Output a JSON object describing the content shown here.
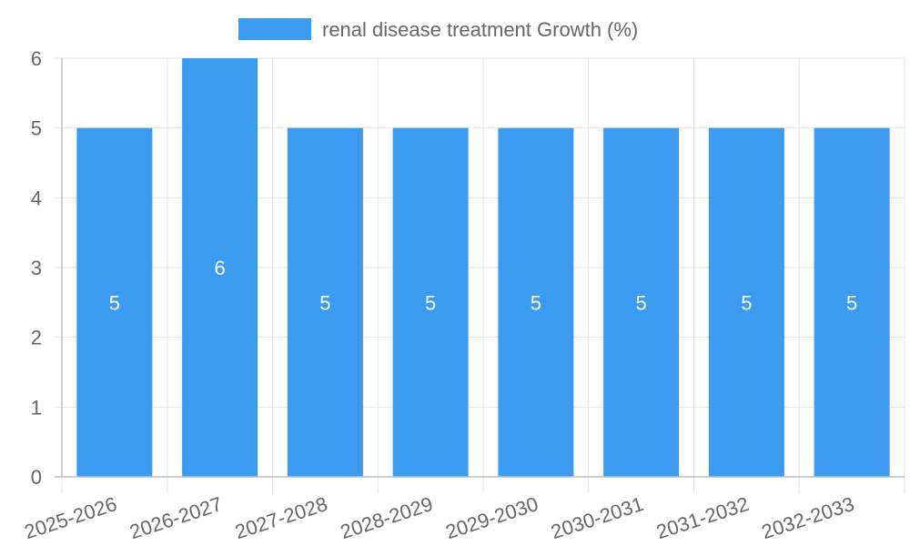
{
  "chart_data": {
    "type": "bar",
    "categories": [
      "2025-2026",
      "2026-2027",
      "2027-2028",
      "2028-2029",
      "2029-2030",
      "2030-2031",
      "2031-2032",
      "2032-2033"
    ],
    "series": [
      {
        "name": "renal disease treatment Growth (%)",
        "values": [
          5,
          6,
          5,
          5,
          5,
          5,
          5,
          5
        ],
        "color": "#3a9bf0"
      }
    ],
    "ylim": [
      0,
      6
    ],
    "yticks": [
      0,
      1,
      2,
      3,
      4,
      5,
      6
    ],
    "grid": true,
    "legend_position": "top",
    "data_labels": true
  }
}
